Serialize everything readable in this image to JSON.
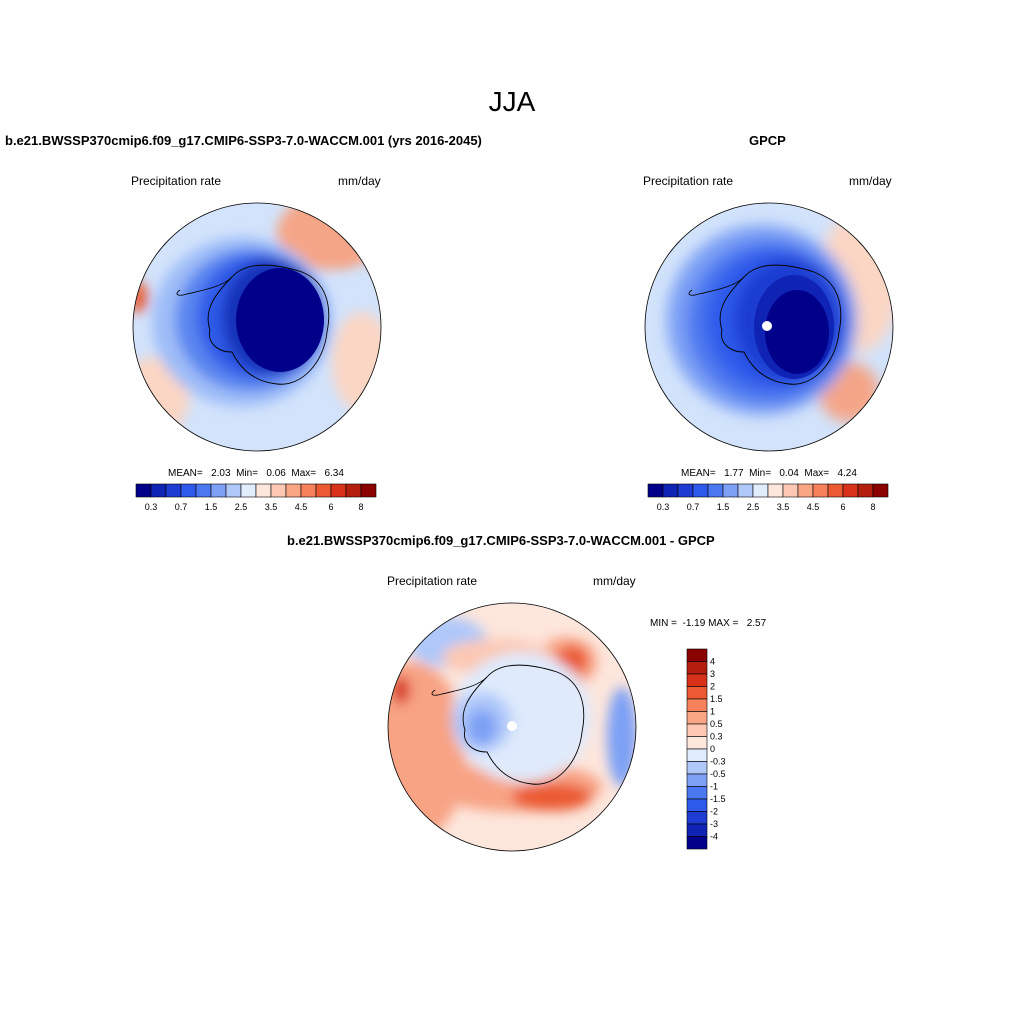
{
  "figure": {
    "title": "JJA"
  },
  "panels": [
    {
      "title": "b.e21.BWSSP370cmip6.f09_g17.CMIP6-SSP3-7.0-WACCM.001 (yrs 2016-2045)",
      "variable": "Precipitation rate",
      "units": "mm/day",
      "stats_text": "MEAN=   2.03  Min=   0.06  Max=   6.34",
      "stats": {
        "mean": 2.03,
        "min": 0.06,
        "max": 6.34
      }
    },
    {
      "title": "GPCP",
      "variable": "Precipitation rate",
      "units": "mm/day",
      "stats_text": "MEAN=   1.77  Min=   0.04  Max=   4.24",
      "stats": {
        "mean": 1.77,
        "min": 0.04,
        "max": 4.24
      }
    },
    {
      "title": "b.e21.BWSSP370cmip6.f09_g17.CMIP6-SSP3-7.0-WACCM.001 - GPCP",
      "variable": "Precipitation rate",
      "units": "mm/day",
      "stats_text": "MIN =  -1.19 MAX =   2.57",
      "stats": {
        "min": -1.19,
        "max": 2.57
      }
    }
  ],
  "abs_colorbar": {
    "labels": [
      "0.3",
      "0.7",
      "1.5",
      "2.5",
      "3.5",
      "4.5",
      "6",
      "8"
    ],
    "colors": [
      "#00008b",
      "#0f23b4",
      "#1e3cd2",
      "#2d5aeb",
      "#4b78f0",
      "#7da0f5",
      "#afc8fa",
      "#e1ecfd",
      "#fde6dc",
      "#fcc8b4",
      "#faa584",
      "#f5825a",
      "#eb5a32",
      "#d73219",
      "#b41e0f",
      "#8b0000"
    ]
  },
  "diff_colorbar": {
    "labels": [
      "4",
      "3",
      "2",
      "1.5",
      "1",
      "0.5",
      "0.3",
      "0",
      "-0.3",
      "-0.5",
      "-1",
      "-1.5",
      "-2",
      "-3",
      "-4"
    ],
    "colors": [
      "#8b0000",
      "#b41e0f",
      "#d73219",
      "#eb5a32",
      "#f5825a",
      "#faa584",
      "#fcc8b4",
      "#fde6dc",
      "#e1ecfd",
      "#afc8fa",
      "#7da0f5",
      "#4b78f0",
      "#2d5aeb",
      "#1e3cd2",
      "#0f23b4",
      "#00008b"
    ]
  },
  "colors": {
    "land_outline": "#000000",
    "background": "#ffffff"
  }
}
